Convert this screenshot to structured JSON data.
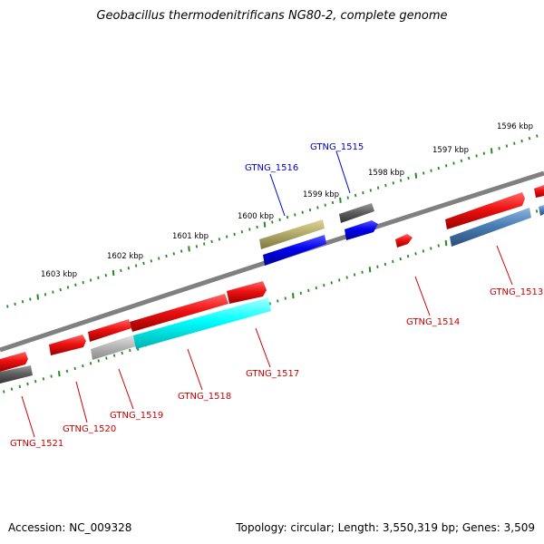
{
  "header": {
    "title": "Geobacillus thermodenitrificans NG80-2, complete genome"
  },
  "footer": {
    "accession": "Accession: NC_009328",
    "summary": "Topology: circular; Length: 3,550,319 bp; Genes: 3,509"
  },
  "ruler": {
    "tick_labels": [
      "1596 kbp",
      "1597 kbp",
      "1598 kbp",
      "1599 kbp",
      "1600 kbp",
      "1601 kbp",
      "1602 kbp",
      "1603 kbp"
    ]
  },
  "genes": [
    {
      "label": "GTNG_1515",
      "color": "#0000cc"
    },
    {
      "label": "GTNG_1516",
      "color": "#0000cc"
    },
    {
      "label": "GTNG_1513",
      "color": "#cc0000"
    },
    {
      "label": "GTNG_1514",
      "color": "#cc0000"
    },
    {
      "label": "GTNG_1517",
      "color": "#cc0000"
    },
    {
      "label": "GTNG_1518",
      "color": "#cc0000"
    },
    {
      "label": "GTNG_1519",
      "color": "#cc0000"
    },
    {
      "label": "GTNG_1520",
      "color": "#cc0000"
    },
    {
      "label": "GTNG_1521",
      "color": "#cc0000"
    }
  ],
  "colors": {
    "backbone": "#808080",
    "ruler_ticks": "#228b22",
    "feature_red": "#ee1111",
    "feature_blue": "#0000ee",
    "feature_steelblue": "#4a7fb5",
    "feature_gray": "#606060",
    "feature_olive": "#b5ad6a",
    "feature_cyan": "#00ffff",
    "feature_lightgray": "#b8b8b8"
  }
}
